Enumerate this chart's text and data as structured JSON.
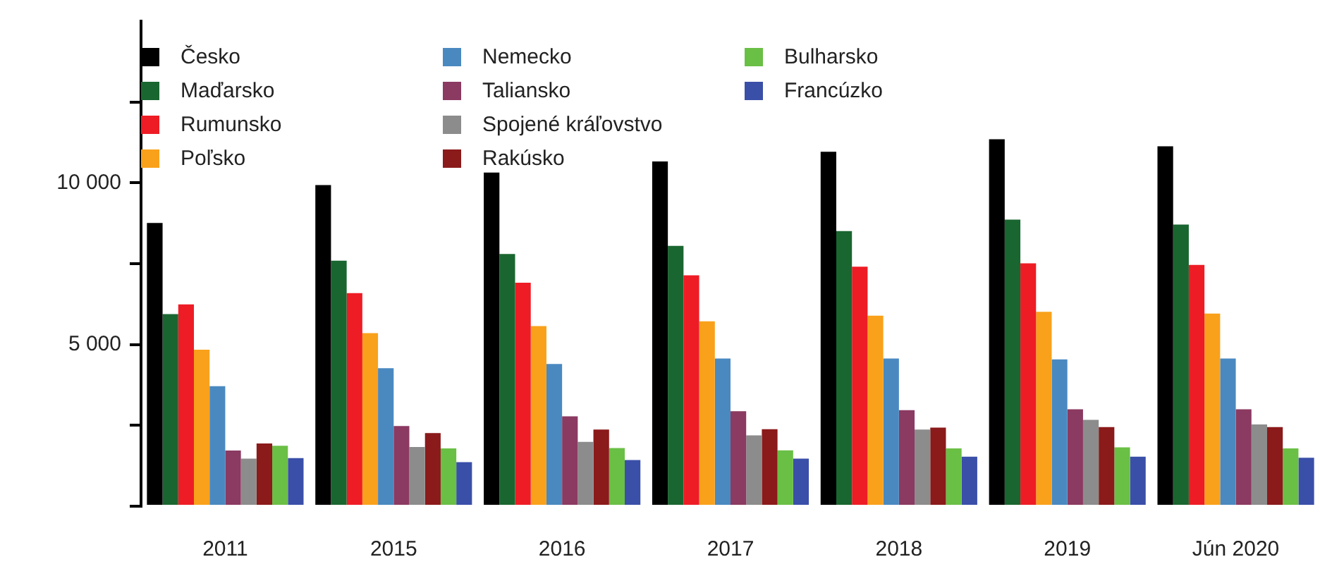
{
  "chart_data": {
    "type": "bar",
    "categories": [
      "2011",
      "2015",
      "2016",
      "2017",
      "2018",
      "2019",
      "Jún 2020"
    ],
    "series": [
      {
        "name": "Česko",
        "color": "#000000",
        "values": [
          8760,
          9930,
          10320,
          10660,
          10960,
          11350,
          11130
        ]
      },
      {
        "name": "Maďarsko",
        "color": "#1a6630",
        "values": [
          5940,
          7590,
          7800,
          8050,
          8510,
          8860,
          8710
        ]
      },
      {
        "name": "Rumunsko",
        "color": "#ee1c25",
        "values": [
          6240,
          6590,
          6910,
          7140,
          7410,
          7510,
          7460
        ]
      },
      {
        "name": "Poľsko",
        "color": "#f9a11b",
        "values": [
          4840,
          5350,
          5570,
          5720,
          5890,
          6010,
          5960
        ]
      },
      {
        "name": "Nemecko",
        "color": "#4a89c0",
        "values": [
          3710,
          4270,
          4400,
          4570,
          4570,
          4540,
          4570
        ]
      },
      {
        "name": "Taliansko",
        "color": "#8b3a62",
        "values": [
          1720,
          2480,
          2780,
          2940,
          2970,
          3000,
          3000
        ]
      },
      {
        "name": "Spojené kráľovstvo",
        "color": "#8c8c8c",
        "values": [
          1470,
          1830,
          1990,
          2190,
          2370,
          2670,
          2530
        ]
      },
      {
        "name": "Rakúsko",
        "color": "#8b1a1a",
        "values": [
          1940,
          2260,
          2370,
          2380,
          2430,
          2450,
          2450
        ]
      },
      {
        "name": "Bulharsko",
        "color": "#6abf45",
        "values": [
          1870,
          1790,
          1800,
          1730,
          1790,
          1820,
          1790
        ]
      },
      {
        "name": "Francúzko",
        "color": "#3a4fa8",
        "values": [
          1490,
          1360,
          1430,
          1470,
          1530,
          1530,
          1500
        ]
      }
    ],
    "ylim": [
      0,
      15000
    ],
    "yticks": [
      {
        "value": 0,
        "label": null
      },
      {
        "value": 2500,
        "label": null
      },
      {
        "value": 5000,
        "label": "5 000"
      },
      {
        "value": 7500,
        "label": null
      },
      {
        "value": 10000,
        "label": "10 000"
      },
      {
        "value": 12500,
        "label": null
      }
    ],
    "grid": false,
    "legend": "top left"
  }
}
